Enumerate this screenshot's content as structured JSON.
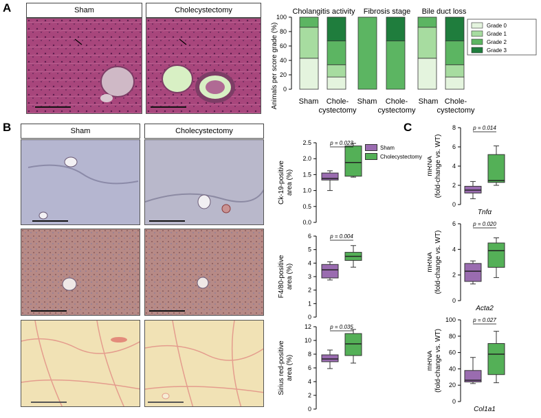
{
  "panels": {
    "a": "A",
    "b": "B",
    "c": "C"
  },
  "panel_a": {
    "headers": [
      "Sham",
      "Cholecystectomy"
    ],
    "ylabel": "Animals per score grade (%)",
    "yticks": [
      "0",
      "20",
      "40",
      "60",
      "80",
      "100"
    ],
    "groups": [
      "Cholangitis activity",
      "Fibrosis stage",
      "Bile duct loss"
    ],
    "xlabels": [
      "Sham",
      "Chole-",
      "cystectomy",
      "Sham",
      "Chole-",
      "cystectomy",
      "Sham",
      "Chole-",
      "cystectomy"
    ],
    "legend": [
      "Grade 0",
      "Grade 1",
      "Grade 2",
      "Grade 3"
    ],
    "colors": [
      "#e4f4de",
      "#a7dca0",
      "#5cb562",
      "#1f7d3d"
    ]
  },
  "panel_b": {
    "headers": [
      "Sham",
      "Cholecystectomy"
    ],
    "legend": [
      "Sham",
      "Cholecystectomy"
    ],
    "colors": {
      "sham": "#9a6cb0",
      "chole": "#54b057"
    }
  },
  "panel_c": {
    "ylabel_line1": "mRNA",
    "ylabel_line2": "(fold-change vs. WT)"
  },
  "chart_data": [
    {
      "type": "bar",
      "stacked": true,
      "title": "Cholangitis activity",
      "categories": [
        "Sham",
        "Chole-cystectomy"
      ],
      "ylabel": "Animals per score grade (%)",
      "ylim": [
        0,
        100
      ],
      "series": [
        {
          "name": "Grade 0",
          "values": [
            43,
            17
          ]
        },
        {
          "name": "Grade 1",
          "values": [
            43,
            17
          ]
        },
        {
          "name": "Grade 2",
          "values": [
            14,
            33
          ]
        },
        {
          "name": "Grade 3",
          "values": [
            0,
            33
          ]
        }
      ]
    },
    {
      "type": "bar",
      "stacked": true,
      "title": "Fibrosis stage",
      "categories": [
        "Sham",
        "Chole-cystectomy"
      ],
      "ylim": [
        0,
        100
      ],
      "series": [
        {
          "name": "Grade 0",
          "values": [
            0,
            0
          ]
        },
        {
          "name": "Grade 1",
          "values": [
            0,
            0
          ]
        },
        {
          "name": "Grade 2",
          "values": [
            100,
            67
          ]
        },
        {
          "name": "Grade 3",
          "values": [
            0,
            33
          ]
        }
      ]
    },
    {
      "type": "bar",
      "stacked": true,
      "title": "Bile duct loss",
      "categories": [
        "Sham",
        "Chole-cystectomy"
      ],
      "ylim": [
        0,
        100
      ],
      "series": [
        {
          "name": "Grade 0",
          "values": [
            43,
            17
          ]
        },
        {
          "name": "Grade 1",
          "values": [
            43,
            17
          ]
        },
        {
          "name": "Grade 2",
          "values": [
            14,
            33
          ]
        },
        {
          "name": "Grade 3",
          "values": [
            0,
            33
          ]
        }
      ]
    },
    {
      "type": "box",
      "ylabel": "Ck-19-positive area (%)",
      "ylim": [
        0,
        2.5
      ],
      "yticks": [
        "0.0",
        "0.5",
        "1.0",
        "1.5",
        "2.0",
        "2.5"
      ],
      "pvalue": "p = 0.023",
      "series": [
        {
          "name": "Sham",
          "min": 1.0,
          "q1": 1.33,
          "median": 1.38,
          "q3": 1.55,
          "max": 1.62
        },
        {
          "name": "Cholecystectomy",
          "min": 1.42,
          "q1": 1.45,
          "median": 1.88,
          "q3": 2.4,
          "max": 2.48
        }
      ]
    },
    {
      "type": "box",
      "ylabel": "F4/80-positive area (%)",
      "ylim": [
        0,
        6
      ],
      "yticks": [
        "0",
        "1",
        "2",
        "3",
        "4",
        "5",
        "6"
      ],
      "pvalue": "p = 0.004",
      "series": [
        {
          "name": "Sham",
          "min": 2.75,
          "q1": 2.9,
          "median": 3.5,
          "q3": 3.9,
          "max": 4.1
        },
        {
          "name": "Cholecystectomy",
          "min": 3.7,
          "q1": 4.2,
          "median": 4.5,
          "q3": 4.8,
          "max": 5.3
        }
      ]
    },
    {
      "type": "box",
      "ylabel": "Sirius red-positive area (%)",
      "ylim": [
        0,
        12
      ],
      "yticks": [
        "0",
        "2",
        "4",
        "6",
        "8",
        "10",
        "12"
      ],
      "pvalue": "p = 0.035",
      "series": [
        {
          "name": "Sham",
          "min": 5.9,
          "q1": 6.9,
          "median": 7.3,
          "q3": 7.9,
          "max": 8.6
        },
        {
          "name": "Cholecystectomy",
          "min": 6.7,
          "q1": 7.8,
          "median": 9.5,
          "q3": 11.0,
          "max": 11.6
        }
      ]
    },
    {
      "type": "box",
      "gene": "Tnfα",
      "ylim": [
        0,
        8
      ],
      "yticks": [
        "0",
        "2",
        "4",
        "6",
        "8"
      ],
      "pvalue": "p = 0.014",
      "series": [
        {
          "name": "Sham",
          "min": 0.6,
          "q1": 1.2,
          "median": 1.5,
          "q3": 1.9,
          "max": 2.4
        },
        {
          "name": "Cholecystectomy",
          "min": 2.0,
          "q1": 2.3,
          "median": 2.5,
          "q3": 5.2,
          "max": 6.1
        }
      ]
    },
    {
      "type": "box",
      "gene": "Acta2",
      "ylim": [
        0,
        6
      ],
      "yticks": [
        "0",
        "2",
        "4",
        "6"
      ],
      "pvalue": "p = 0.020",
      "series": [
        {
          "name": "Sham",
          "min": 1.3,
          "q1": 1.5,
          "median": 2.3,
          "q3": 2.9,
          "max": 3.1
        },
        {
          "name": "Cholecystectomy",
          "min": 1.8,
          "q1": 2.6,
          "median": 3.9,
          "q3": 4.5,
          "max": 4.9
        }
      ]
    },
    {
      "type": "box",
      "gene": "Col1a1",
      "ylim": [
        0,
        100
      ],
      "yticks": [
        "0",
        "20",
        "40",
        "60",
        "80",
        "100"
      ],
      "pvalue": "p = 0.027",
      "series": [
        {
          "name": "Sham",
          "min": 22,
          "q1": 24,
          "median": 26,
          "q3": 38,
          "max": 54
        },
        {
          "name": "Cholecystectomy",
          "min": 23,
          "q1": 33,
          "median": 58,
          "q3": 71,
          "max": 86
        }
      ]
    }
  ]
}
